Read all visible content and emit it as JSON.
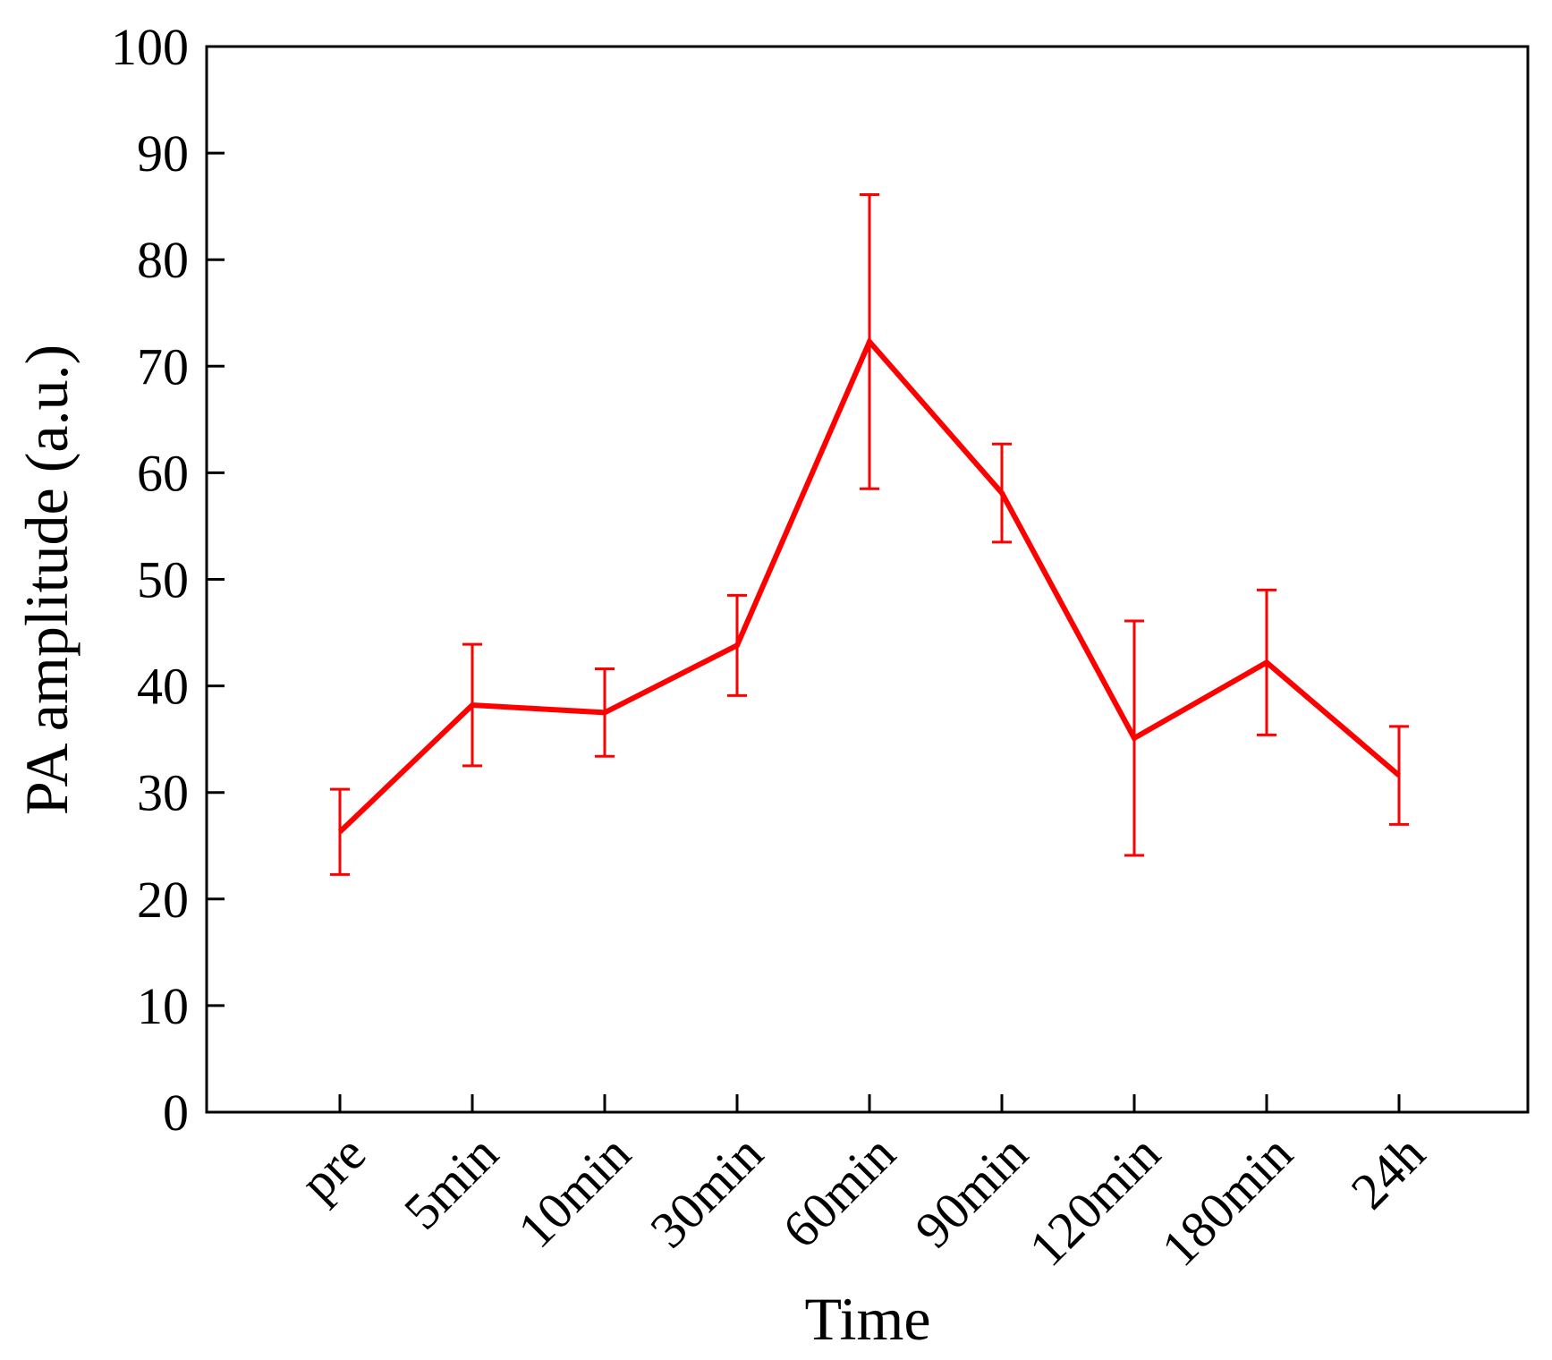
{
  "chart_data": {
    "type": "line",
    "title": "",
    "xlabel": "Time",
    "ylabel": "PA amplitude (a.u.)",
    "ylim": [
      0,
      100
    ],
    "yticks": [
      0,
      10,
      20,
      30,
      40,
      50,
      60,
      70,
      80,
      90,
      100
    ],
    "categories": [
      "pre",
      "5min",
      "10min",
      "30min",
      "60min",
      "90min",
      "120min",
      "180min",
      "24h"
    ],
    "series": [
      {
        "color": "#ff0000",
        "values": [
          26.3,
          38.2,
          37.5,
          43.8,
          72.3,
          58.1,
          35.1,
          42.2,
          31.6
        ],
        "error": [
          4.0,
          5.7,
          4.1,
          4.7,
          13.8,
          4.6,
          11.0,
          6.8,
          4.6
        ]
      }
    ],
    "grid": false,
    "legend": "none"
  }
}
